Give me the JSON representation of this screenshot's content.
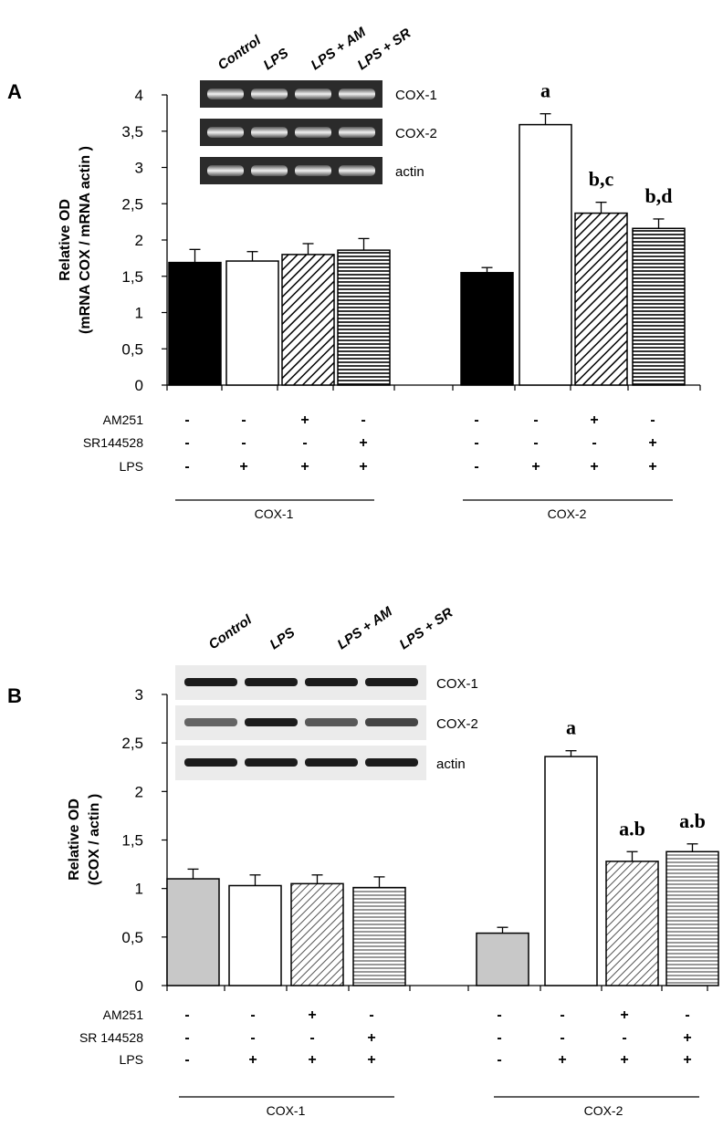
{
  "patterns": [
    "solid",
    "open",
    "diag",
    "horiz"
  ],
  "chart_data": [
    {
      "type": "bar",
      "panel_label": "A",
      "ylabel": "Relative OD",
      "ylabel2": "(mRNA COX / mRNA actin )",
      "ylim": [
        0,
        4
      ],
      "ytick_labels": [
        "0",
        "0,5",
        "1",
        "1,5",
        "2",
        "2,5",
        "3",
        "3,5",
        "4"
      ],
      "groups": [
        {
          "name": "COX-1",
          "values": [
            1.69,
            1.71,
            1.8,
            1.86
          ],
          "errors": [
            0.18,
            0.13,
            0.15,
            0.16
          ],
          "sig": [
            "",
            "",
            "",
            ""
          ]
        },
        {
          "name": "COX-2",
          "values": [
            1.55,
            3.59,
            2.37,
            2.16
          ],
          "errors": [
            0.07,
            0.15,
            0.15,
            0.13
          ],
          "sig": [
            "",
            "a",
            "b,c",
            "b,d"
          ]
        }
      ],
      "colors": {
        "bar_fill_first": "#000000",
        "bar_edge": "#000000"
      },
      "treatments": [
        {
          "label": "AM251",
          "signs": [
            "-",
            "-",
            "+",
            "-",
            "-",
            "-",
            "+",
            "-"
          ]
        },
        {
          "label": "SR144528",
          "signs": [
            "-",
            "-",
            "-",
            "+",
            "-",
            "-",
            "-",
            "+"
          ]
        },
        {
          "label": "LPS",
          "signs": [
            "-",
            "+",
            "+",
            "+",
            "-",
            "+",
            "+",
            "+"
          ]
        }
      ],
      "inset": {
        "lanes": [
          "Control",
          "LPS",
          "LPS + AM",
          "LPS + SR"
        ],
        "rows": [
          "COX-1",
          "COX-2",
          "actin"
        ],
        "type": "gel"
      }
    },
    {
      "type": "bar",
      "panel_label": "B",
      "ylabel": "Relative OD",
      "ylabel2": "(COX / actin )",
      "ylim": [
        0,
        3
      ],
      "ytick_labels": [
        "0",
        "0,5",
        "1",
        "1,5",
        "2",
        "2,5",
        "3"
      ],
      "groups": [
        {
          "name": "COX-1",
          "values": [
            1.1,
            1.03,
            1.05,
            1.01
          ],
          "errors": [
            0.1,
            0.11,
            0.09,
            0.11
          ],
          "sig": [
            "",
            "",
            "",
            ""
          ]
        },
        {
          "name": "COX-2",
          "values": [
            0.54,
            2.36,
            1.28,
            1.38
          ],
          "errors": [
            0.06,
            0.06,
            0.1,
            0.08
          ],
          "sig": [
            "",
            "a",
            "a.b",
            "a.b"
          ]
        }
      ],
      "colors": {
        "bar_fill_first": "#c8c8c8",
        "bar_edge": "#000000"
      },
      "treatments": [
        {
          "label": "AM251",
          "signs": [
            "-",
            "-",
            "+",
            "-",
            "-",
            "-",
            "+",
            "-"
          ]
        },
        {
          "label": "SR 144528",
          "signs": [
            "-",
            "-",
            "-",
            "+",
            "-",
            "-",
            "-",
            "+"
          ]
        },
        {
          "label": "LPS",
          "signs": [
            "-",
            "+",
            "+",
            "+",
            "-",
            "+",
            "+",
            "+"
          ]
        }
      ],
      "inset": {
        "lanes": [
          "Control",
          "LPS",
          "LPS + AM",
          "LPS + SR"
        ],
        "rows": [
          "COX-1",
          "COX-2",
          "actin"
        ],
        "type": "western"
      }
    }
  ]
}
